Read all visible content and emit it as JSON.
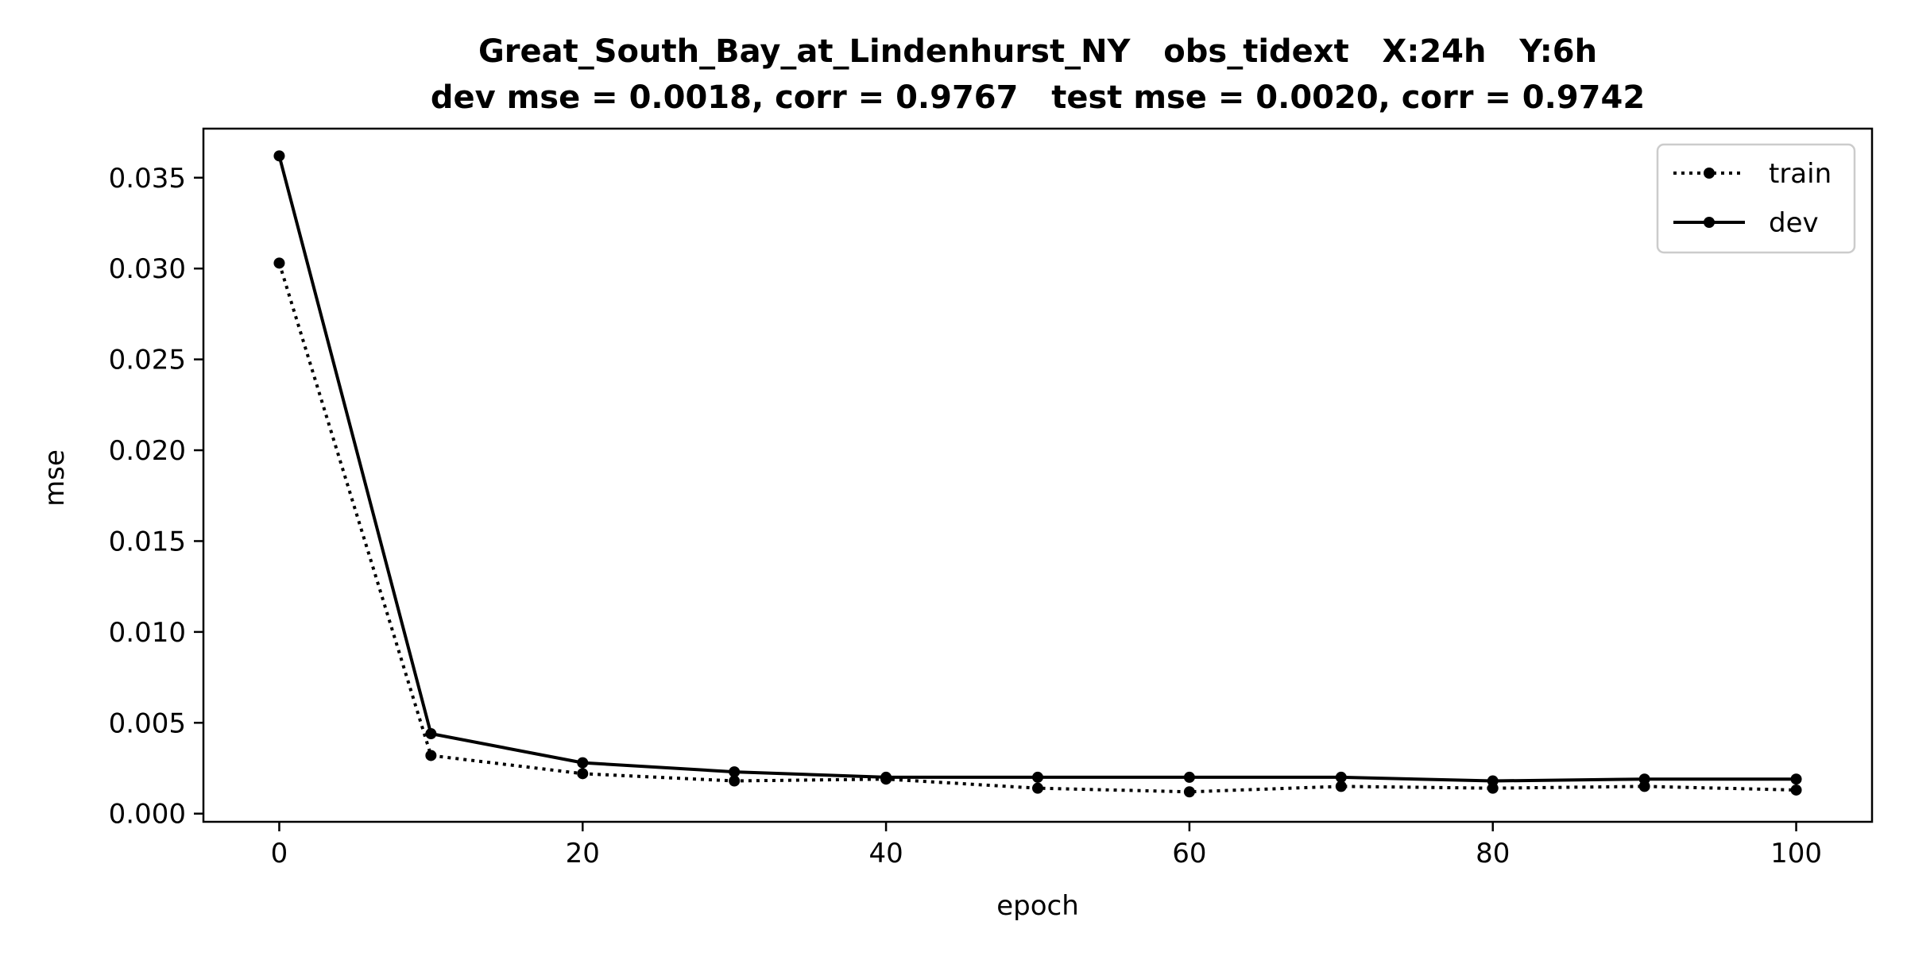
{
  "chart_data": {
    "type": "line",
    "title": "Great_South_Bay_at_Lindenhurst_NY   obs_tidext   X:24h   Y:6h",
    "subtitle": "dev mse = 0.0018, corr = 0.9767   test mse = 0.0020, corr = 0.9742",
    "xlabel": "epoch",
    "ylabel": "mse",
    "xlim": [
      -5,
      105
    ],
    "ylim": [
      -0.00045,
      0.0377
    ],
    "x_ticks": [
      0,
      20,
      40,
      60,
      80,
      100
    ],
    "x_tick_labels": [
      "0",
      "20",
      "40",
      "60",
      "80",
      "100"
    ],
    "y_ticks": [
      0.0,
      0.005,
      0.01,
      0.015,
      0.02,
      0.025,
      0.03,
      0.035
    ],
    "y_tick_labels": [
      "0.000",
      "0.005",
      "0.010",
      "0.015",
      "0.020",
      "0.025",
      "0.030",
      "0.035"
    ],
    "grid": false,
    "legend_position": "top-right",
    "x": [
      0,
      10,
      20,
      30,
      40,
      50,
      60,
      70,
      80,
      90,
      100
    ],
    "series": [
      {
        "name": "train",
        "line_style": "dotted",
        "color": "#000000",
        "values": [
          0.0303,
          0.0032,
          0.0022,
          0.0018,
          0.0019,
          0.0014,
          0.0012,
          0.0015,
          0.0014,
          0.0015,
          0.0013
        ]
      },
      {
        "name": "dev",
        "line_style": "solid",
        "color": "#000000",
        "values": [
          0.0362,
          0.0044,
          0.0028,
          0.0023,
          0.002,
          0.002,
          0.002,
          0.002,
          0.0018,
          0.0019,
          0.0019
        ]
      }
    ]
  }
}
